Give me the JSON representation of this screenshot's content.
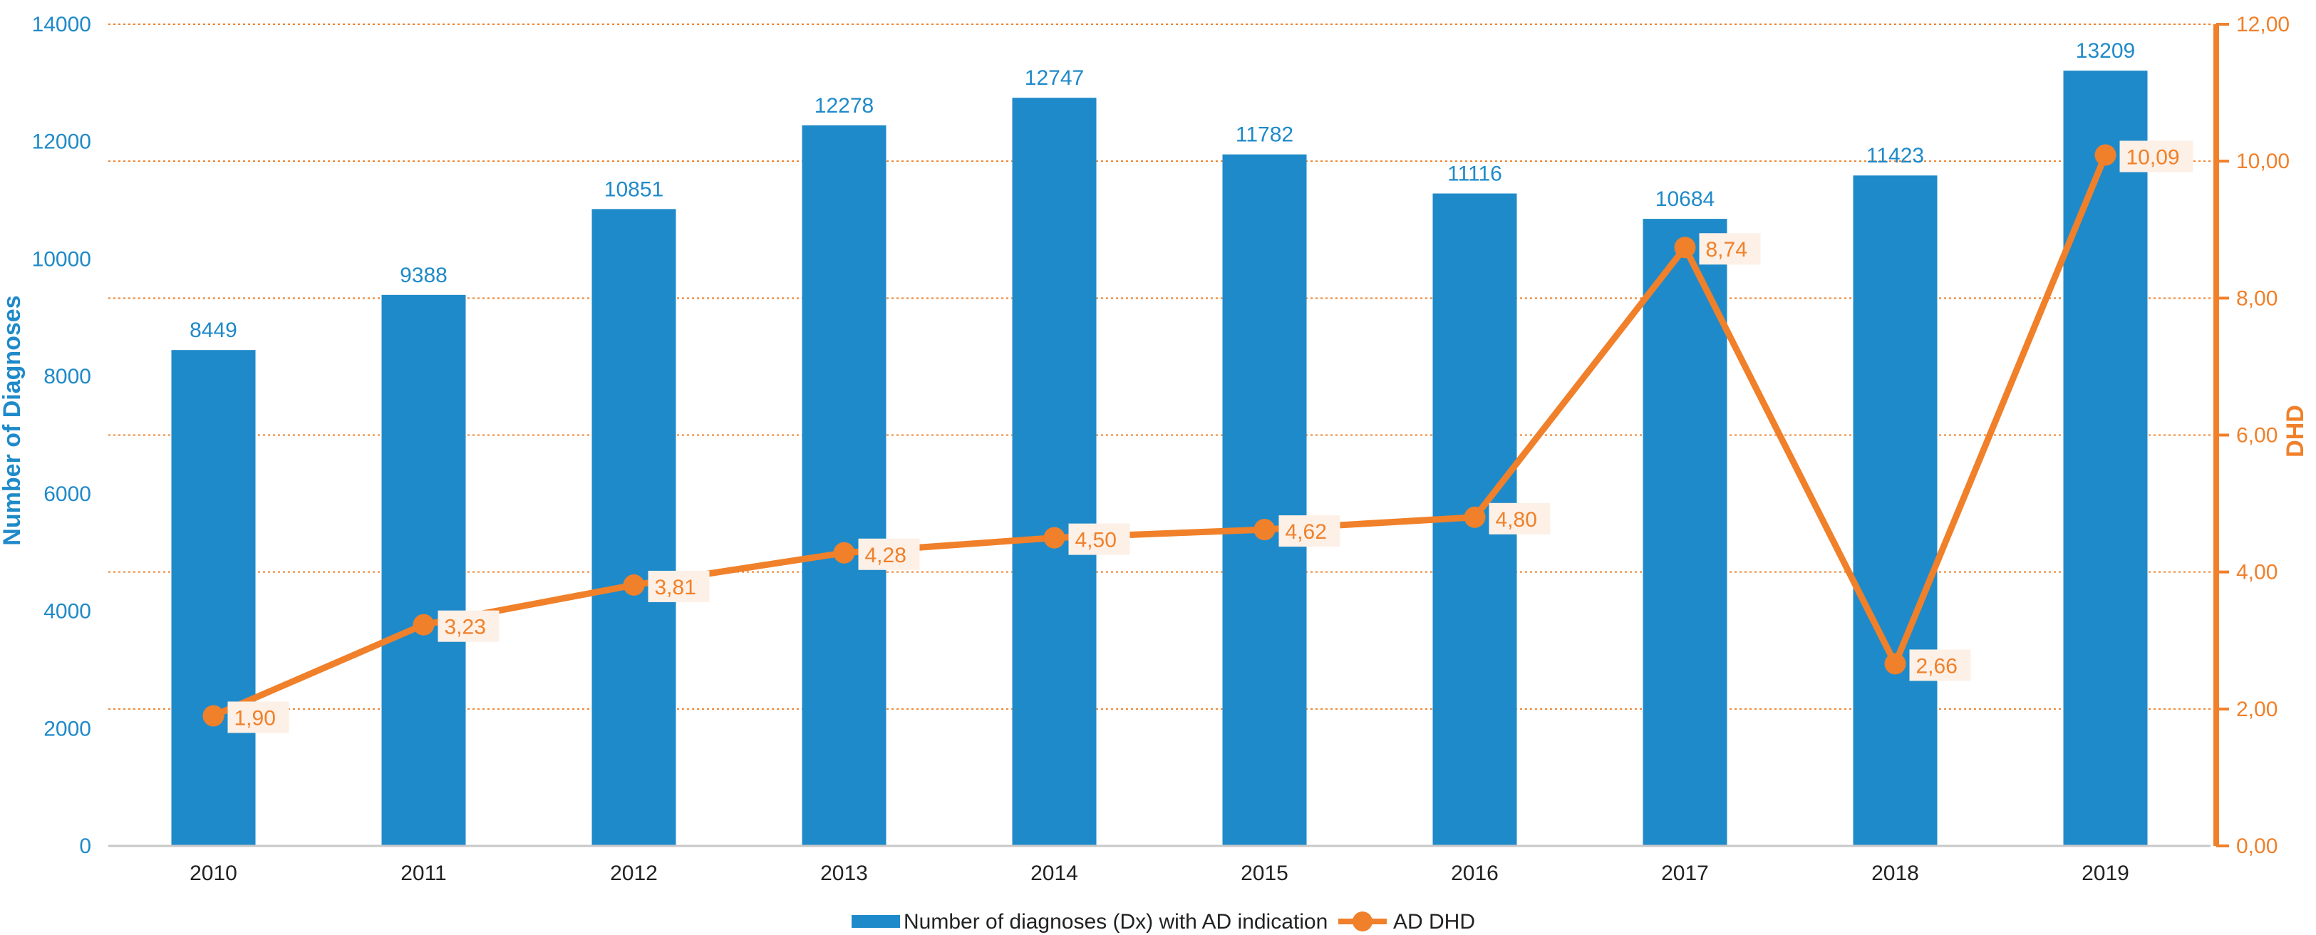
{
  "chart_data": {
    "type": "bar",
    "categories": [
      "2010",
      "2011",
      "2012",
      "2013",
      "2014",
      "2015",
      "2016",
      "2017",
      "2018",
      "2019"
    ],
    "series": [
      {
        "name": "Number of diagnoses (Dx) with AD indication",
        "type": "bar",
        "axis": "left",
        "values": [
          8449,
          9388,
          10851,
          12278,
          12747,
          11782,
          11116,
          10684,
          11423,
          13209
        ],
        "labels": [
          "8449",
          "9388",
          "10851",
          "12278",
          "12747",
          "11782",
          "11116",
          "10684",
          "11423",
          "13209"
        ],
        "color": "#1f8ac9"
      },
      {
        "name": "AD DHD",
        "type": "line",
        "axis": "right",
        "values": [
          1.9,
          3.23,
          3.81,
          4.28,
          4.5,
          4.62,
          4.8,
          8.74,
          2.66,
          10.09
        ],
        "labels": [
          "1,90",
          "3,23",
          "3,81",
          "4,28",
          "4,50",
          "4,62",
          "4,80",
          "8,74",
          "2,66",
          "10,09"
        ],
        "color": "#f0802a"
      }
    ],
    "y_left": {
      "label": "Number of Diagnoses",
      "min": 0,
      "max": 14000,
      "ticks": [
        0,
        2000,
        4000,
        6000,
        8000,
        10000,
        12000,
        14000
      ],
      "tick_labels": [
        "0",
        "2000",
        "4000",
        "6000",
        "8000",
        "10000",
        "12000",
        "14000"
      ]
    },
    "y_right": {
      "label": "DHD",
      "min": 0,
      "max": 12,
      "ticks": [
        0,
        2,
        4,
        6,
        8,
        10,
        12
      ],
      "tick_labels": [
        "0,00",
        "2,00",
        "4,00",
        "6,00",
        "8,00",
        "10,00",
        "12,00"
      ]
    },
    "grid": true,
    "grid_color": "#f0802a",
    "legend_position": "bottom"
  }
}
